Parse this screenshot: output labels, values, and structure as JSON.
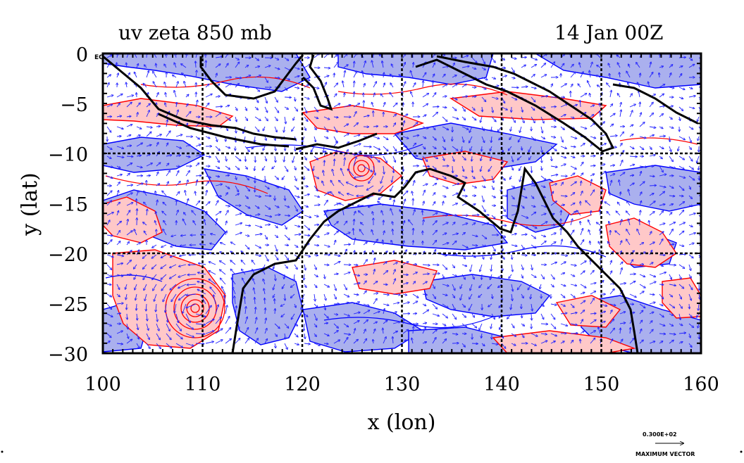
{
  "title_left": "uv zeta 850 mb",
  "title_right": "14 Jan 00Z",
  "xlabel": "x (lon)",
  "ylabel": "y (lat)",
  "x_ticks": [
    "100",
    "110",
    "120",
    "130",
    "140",
    "150",
    "160"
  ],
  "y_ticks": [
    "0",
    "−5",
    "−10",
    "−15",
    "−20",
    "−25",
    "−30"
  ],
  "corner_label": "EQ",
  "vector_legend": {
    "magnitude": "0.300E+02",
    "label": "MAXIMUM VECTOR"
  },
  "colors": {
    "positive_contour": "#ff0000",
    "positive_fill": "#ffc8c8",
    "negative_contour": "#0000ff",
    "negative_fill": "#aab0ee",
    "vectors": "#2020ff",
    "coastline": "#000000"
  },
  "chart_data": {
    "type": "map",
    "x_range": [
      100,
      160
    ],
    "y_range": [
      -30,
      0
    ],
    "grid_lon": [
      110,
      120,
      130,
      140,
      150
    ],
    "grid_lat": [
      -10,
      -20
    ],
    "cyclone_centers": [
      {
        "lon": 109.5,
        "lat": -25.5
      },
      {
        "lon": 126,
        "lat": -11.5
      }
    ]
  }
}
